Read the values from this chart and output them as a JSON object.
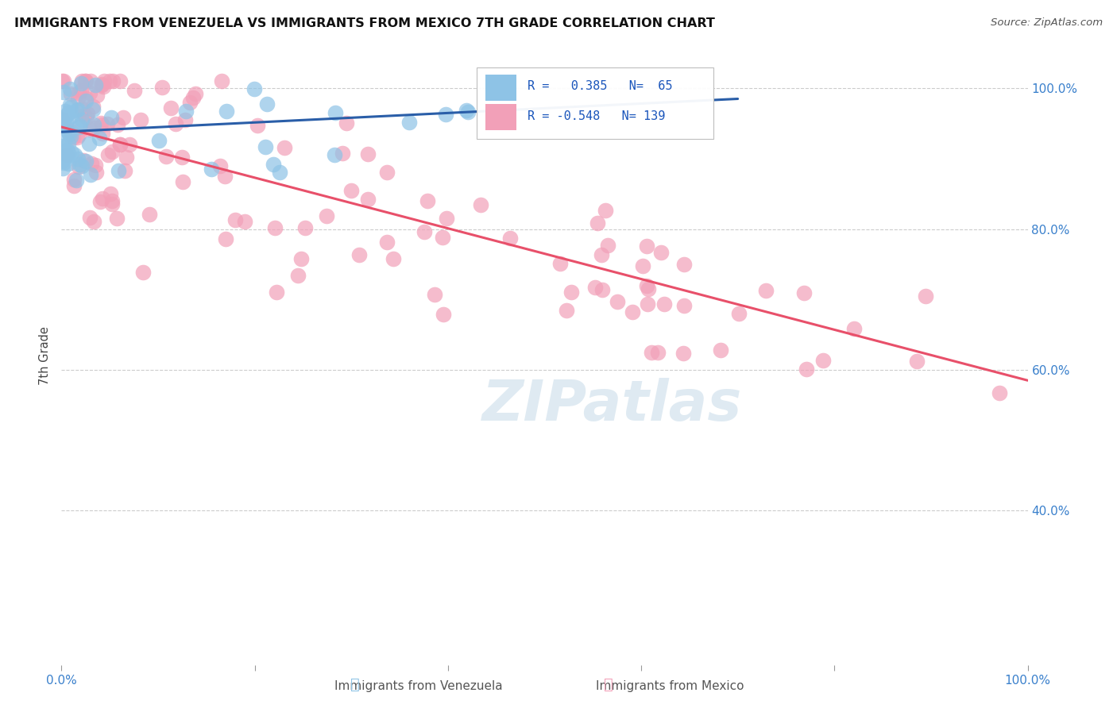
{
  "title": "IMMIGRANTS FROM VENEZUELA VS IMMIGRANTS FROM MEXICO 7TH GRADE CORRELATION CHART",
  "source": "Source: ZipAtlas.com",
  "ylabel": "7th Grade",
  "xlim": [
    0.0,
    1.0
  ],
  "ylim": [
    0.18,
    1.06
  ],
  "y_ticks": [
    0.4,
    0.6,
    0.8,
    1.0
  ],
  "R_venezuela": 0.385,
  "N_venezuela": 65,
  "R_mexico": -0.548,
  "N_mexico": 139,
  "color_venezuela": "#8ec3e6",
  "color_mexico": "#f2a0b8",
  "trend_color_venezuela": "#2a5ea8",
  "trend_color_mexico": "#e8506a",
  "watermark": "ZIPatlas",
  "background_color": "#ffffff",
  "ven_trend_x": [
    0.0,
    0.7
  ],
  "ven_trend_y": [
    0.938,
    0.985
  ],
  "mex_trend_x": [
    0.0,
    1.0
  ],
  "mex_trend_y": [
    0.945,
    0.585
  ]
}
